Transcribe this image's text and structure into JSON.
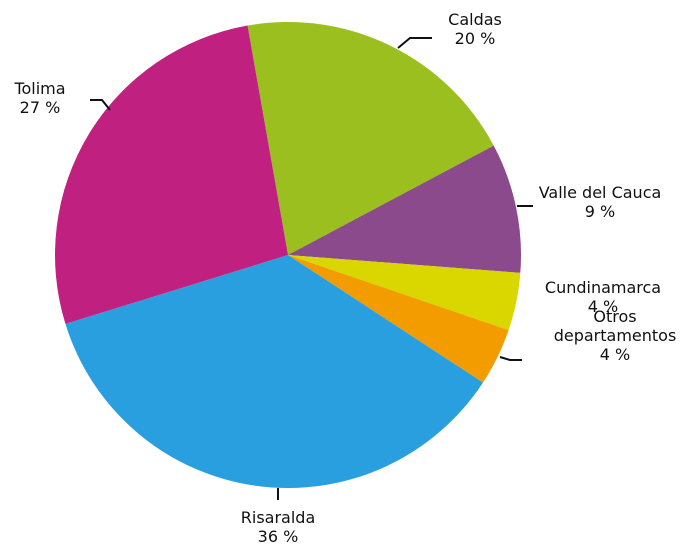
{
  "chart_data": {
    "type": "pie",
    "categories": [
      "Caldas",
      "Valle del Cauca",
      "Cundinamarca",
      "Otros departamentos",
      "Risaralda",
      "Tolima"
    ],
    "values": [
      20,
      9,
      4,
      4,
      36,
      27
    ],
    "value_labels": [
      "20 %",
      "9 %",
      "4 %",
      "4 %",
      "36 %",
      "27 %"
    ],
    "colors": [
      "#9bbf1f",
      "#8b4a8c",
      "#d9d600",
      "#f39c00",
      "#2a9fe0",
      "#c0207f"
    ]
  }
}
